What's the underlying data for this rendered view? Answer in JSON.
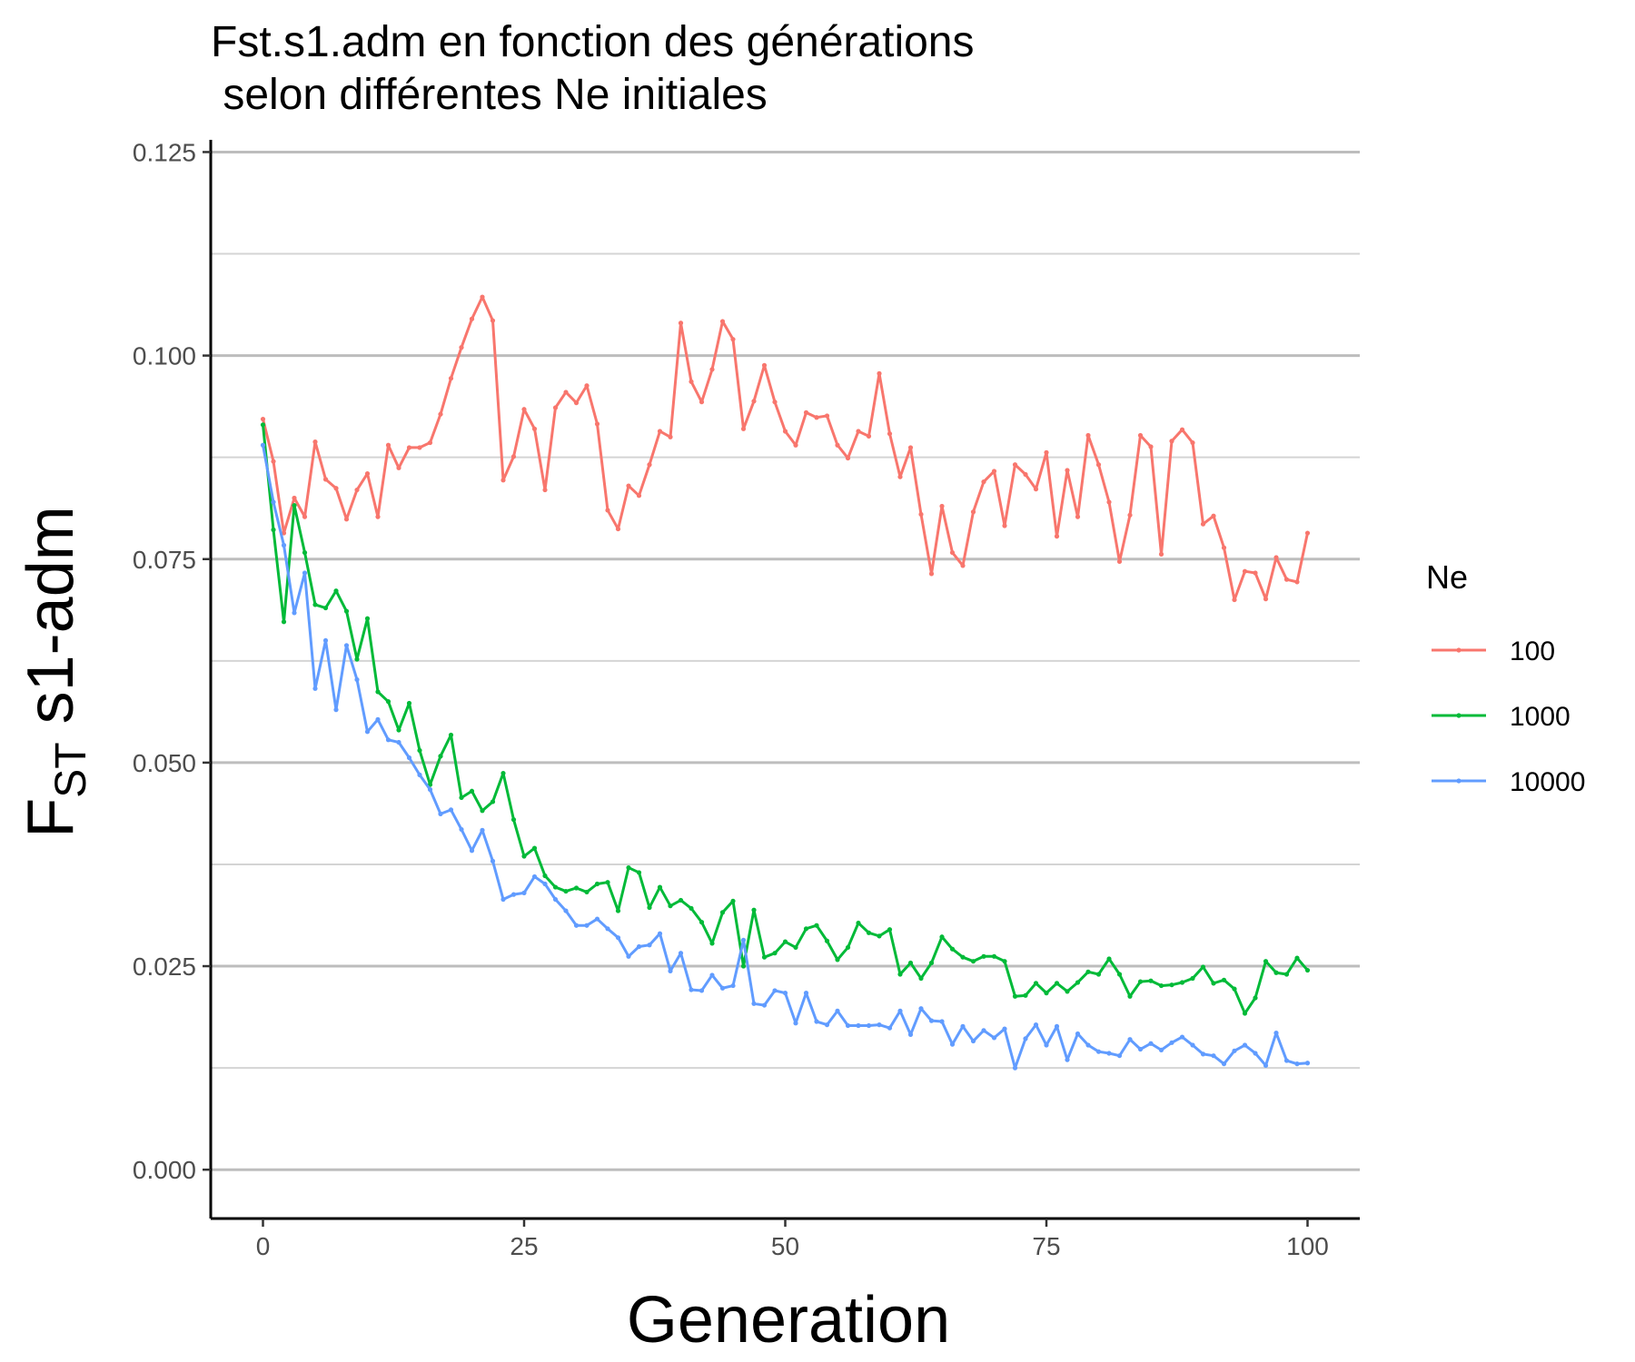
{
  "chart_data": {
    "type": "line",
    "title_line1": "Fst.s1.adm en fonction des générations",
    "title_line2": " selon différentes Ne initiales",
    "xlabel": "Generation",
    "ylabel_main": "F",
    "ylabel_sub": "ST",
    "ylabel_rest": " s1-adm",
    "xlim": [
      -5,
      105
    ],
    "ylim": [
      -0.006,
      0.1265
    ],
    "x_ticks": [
      0,
      25,
      50,
      75,
      100
    ],
    "x_tick_labels": [
      "0",
      "25",
      "50",
      "75",
      "100"
    ],
    "y_ticks": [
      0,
      0.025,
      0.05,
      0.075,
      0.1,
      0.125
    ],
    "y_tick_labels": [
      "0.000",
      "0.025",
      "0.050",
      "0.075",
      "0.100",
      "0.125"
    ],
    "y_minor_ticks": [
      0.0125,
      0.0375,
      0.0625,
      0.0875,
      0.1125
    ],
    "grid": "horizontal major and minor",
    "legend": {
      "title": "Ne",
      "placement": "right"
    },
    "x": [
      0,
      1,
      2,
      3,
      4,
      5,
      6,
      7,
      8,
      9,
      10,
      11,
      12,
      13,
      14,
      15,
      16,
      17,
      18,
      19,
      20,
      21,
      22,
      23,
      24,
      25,
      26,
      27,
      28,
      29,
      30,
      31,
      32,
      33,
      34,
      35,
      36,
      37,
      38,
      39,
      40,
      41,
      42,
      43,
      44,
      45,
      46,
      47,
      48,
      49,
      50,
      51,
      52,
      53,
      54,
      55,
      56,
      57,
      58,
      59,
      60,
      61,
      62,
      63,
      64,
      65,
      66,
      67,
      68,
      69,
      70,
      71,
      72,
      73,
      74,
      75,
      76,
      77,
      78,
      79,
      80,
      81,
      82,
      83,
      84,
      85,
      86,
      87,
      88,
      89,
      90,
      91,
      92,
      93,
      94,
      95,
      96,
      97,
      98,
      99,
      100
    ],
    "series": [
      {
        "name": "100",
        "color": "#F8766D",
        "values": [
          0.0922,
          0.087,
          0.0782,
          0.0825,
          0.0802,
          0.0894,
          0.0848,
          0.0837,
          0.0799,
          0.0835,
          0.0855,
          0.0802,
          0.089,
          0.0862,
          0.0887,
          0.0887,
          0.0893,
          0.0928,
          0.0972,
          0.101,
          0.1045,
          0.1072,
          0.1043,
          0.0847,
          0.0876,
          0.0934,
          0.091,
          0.0835,
          0.0936,
          0.0955,
          0.0942,
          0.0963,
          0.0916,
          0.081,
          0.0787,
          0.084,
          0.0828,
          0.0866,
          0.0907,
          0.09,
          0.104,
          0.0968,
          0.0943,
          0.0983,
          0.1042,
          0.102,
          0.091,
          0.0944,
          0.0988,
          0.0943,
          0.0907,
          0.089,
          0.093,
          0.0924,
          0.0926,
          0.089,
          0.0874,
          0.0907,
          0.0901,
          0.0978,
          0.0904,
          0.0851,
          0.0887,
          0.0805,
          0.0732,
          0.0815,
          0.0758,
          0.0742,
          0.0808,
          0.0845,
          0.0858,
          0.0791,
          0.0866,
          0.0854,
          0.0836,
          0.0881,
          0.0778,
          0.0859,
          0.0802,
          0.0902,
          0.0866,
          0.082,
          0.0747,
          0.0804,
          0.0902,
          0.0888,
          0.0756,
          0.0895,
          0.0909,
          0.0893,
          0.0793,
          0.0803,
          0.0764,
          0.07,
          0.0735,
          0.0733,
          0.0701,
          0.0752,
          0.0725,
          0.0722,
          0.0782
        ]
      },
      {
        "name": "1000",
        "color": "#00BA38",
        "values": [
          0.0915,
          0.0786,
          0.0673,
          0.0816,
          0.0758,
          0.0694,
          0.069,
          0.0711,
          0.0686,
          0.0627,
          0.0677,
          0.0587,
          0.0575,
          0.054,
          0.0573,
          0.0515,
          0.0473,
          0.0508,
          0.0534,
          0.0457,
          0.0465,
          0.0441,
          0.0452,
          0.0487,
          0.043,
          0.0385,
          0.0395,
          0.0361,
          0.0347,
          0.0342,
          0.0346,
          0.0341,
          0.0351,
          0.0353,
          0.0318,
          0.0371,
          0.0365,
          0.0322,
          0.0347,
          0.0324,
          0.0331,
          0.0321,
          0.0304,
          0.0278,
          0.0316,
          0.033,
          0.025,
          0.0319,
          0.0261,
          0.0266,
          0.028,
          0.0273,
          0.0296,
          0.03,
          0.0281,
          0.0258,
          0.0273,
          0.0303,
          0.0291,
          0.0287,
          0.0295,
          0.024,
          0.0254,
          0.0235,
          0.0254,
          0.0286,
          0.0271,
          0.0261,
          0.0256,
          0.0262,
          0.0262,
          0.0256,
          0.0213,
          0.0214,
          0.0229,
          0.0217,
          0.0229,
          0.0219,
          0.023,
          0.0243,
          0.024,
          0.0259,
          0.024,
          0.0213,
          0.0231,
          0.0232,
          0.0226,
          0.0227,
          0.023,
          0.0235,
          0.0249,
          0.0229,
          0.0233,
          0.0222,
          0.0192,
          0.0211,
          0.0256,
          0.0242,
          0.024,
          0.026,
          0.0245
        ]
      },
      {
        "name": "10000",
        "color": "#619CFF",
        "values": [
          0.089,
          0.082,
          0.0767,
          0.0684,
          0.0733,
          0.0591,
          0.065,
          0.0565,
          0.0644,
          0.0602,
          0.0538,
          0.0553,
          0.0528,
          0.0525,
          0.0506,
          0.0485,
          0.0467,
          0.0437,
          0.0442,
          0.0418,
          0.0392,
          0.0417,
          0.0379,
          0.0332,
          0.0338,
          0.034,
          0.036,
          0.0351,
          0.0332,
          0.0318,
          0.03,
          0.03,
          0.0308,
          0.0296,
          0.0285,
          0.0262,
          0.0274,
          0.0276,
          0.029,
          0.0244,
          0.0266,
          0.0221,
          0.022,
          0.0239,
          0.0223,
          0.0226,
          0.0282,
          0.0204,
          0.0202,
          0.022,
          0.0217,
          0.018,
          0.0217,
          0.0182,
          0.0178,
          0.0195,
          0.0177,
          0.0177,
          0.0177,
          0.0178,
          0.0174,
          0.0195,
          0.0166,
          0.0198,
          0.0183,
          0.0182,
          0.0154,
          0.0176,
          0.0158,
          0.0171,
          0.0162,
          0.0173,
          0.0125,
          0.0161,
          0.0178,
          0.0153,
          0.0176,
          0.0135,
          0.0167,
          0.0153,
          0.0145,
          0.0143,
          0.014,
          0.016,
          0.0148,
          0.0155,
          0.0147,
          0.0156,
          0.0163,
          0.0153,
          0.0142,
          0.014,
          0.013,
          0.0146,
          0.0153,
          0.0143,
          0.0128,
          0.0168,
          0.0134,
          0.013,
          0.0131
        ]
      }
    ]
  }
}
